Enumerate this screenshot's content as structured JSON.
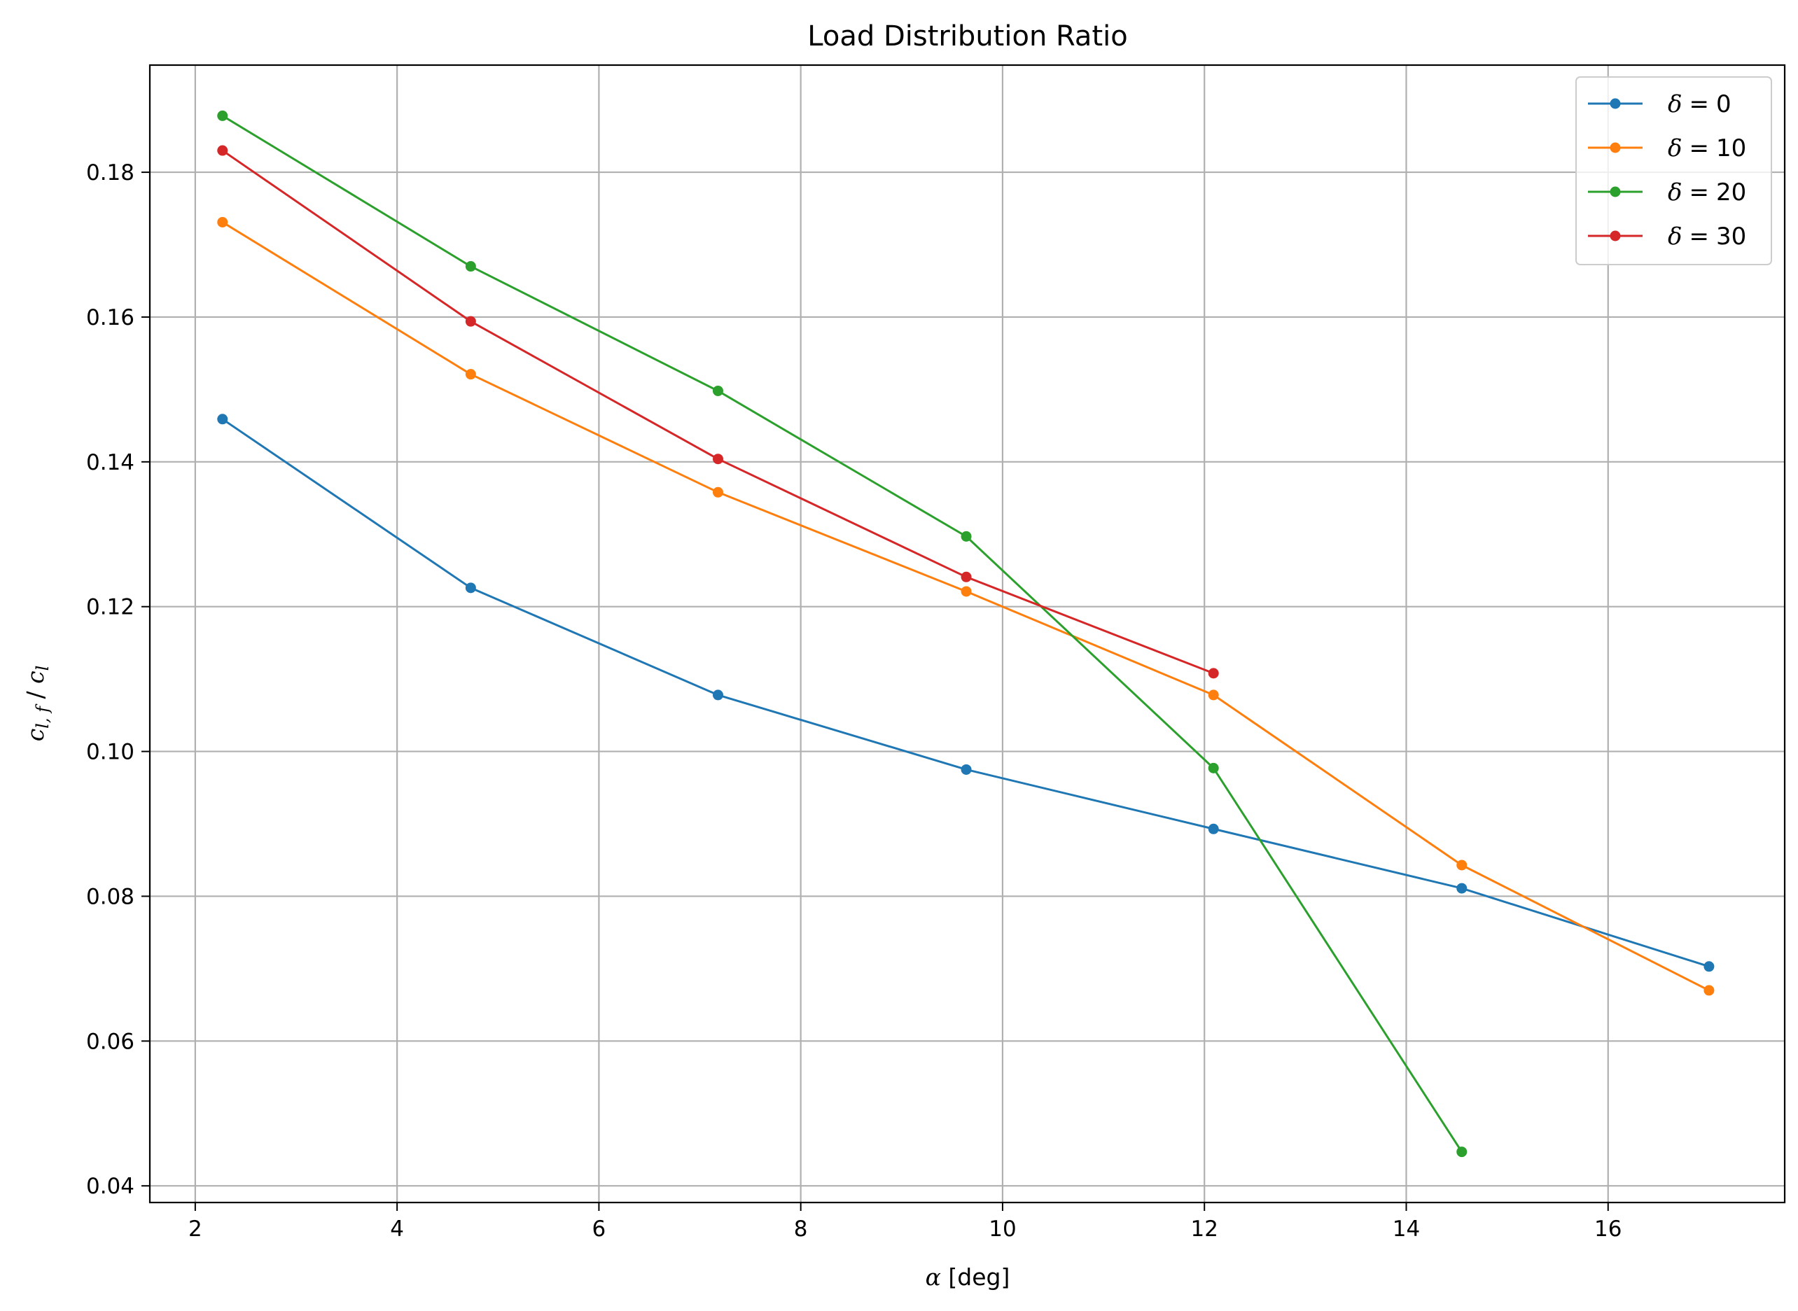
{
  "chart_data": {
    "type": "line",
    "title": "Load Distribution Ratio",
    "xlabel": "α [deg]",
    "ylabel": "c_{l,f} / c_l",
    "xlim": [
      1.55,
      17.75
    ],
    "ylim": [
      0.0377,
      0.1948
    ],
    "xticks": [
      2,
      4,
      6,
      8,
      10,
      12,
      14,
      16
    ],
    "yticks": [
      0.04,
      0.06,
      0.08,
      0.1,
      0.12,
      0.14,
      0.16,
      0.18
    ],
    "xtick_labels": [
      "2",
      "4",
      "6",
      "8",
      "10",
      "12",
      "14",
      "16"
    ],
    "ytick_labels": [
      "0.04",
      "0.06",
      "0.08",
      "0.10",
      "0.12",
      "0.14",
      "0.16",
      "0.18"
    ],
    "grid": true,
    "legend_position": "top-right",
    "series": [
      {
        "name": "δ = 0",
        "color": "#1f77b4",
        "x": [
          2.27,
          4.73,
          7.18,
          9.64,
          12.09,
          14.55,
          17.0
        ],
        "y": [
          0.1459,
          0.1226,
          0.1078,
          0.0975,
          0.0893,
          0.0811,
          0.0703
        ]
      },
      {
        "name": "δ = 10",
        "color": "#ff7f0e",
        "x": [
          2.27,
          4.73,
          7.18,
          9.64,
          12.09,
          14.55,
          17.0
        ],
        "y": [
          0.1731,
          0.1521,
          0.1358,
          0.1221,
          0.1078,
          0.0843,
          0.067
        ]
      },
      {
        "name": "δ = 20",
        "color": "#2ca02c",
        "x": [
          2.27,
          4.73,
          7.18,
          9.64,
          12.09,
          14.55
        ],
        "y": [
          0.1878,
          0.167,
          0.1498,
          0.1297,
          0.0977,
          0.0447
        ]
      },
      {
        "name": "δ = 30",
        "color": "#d62728",
        "x": [
          2.27,
          4.73,
          7.18,
          9.64,
          12.09
        ],
        "y": [
          0.183,
          0.1594,
          0.1404,
          0.1241,
          0.1108
        ]
      }
    ],
    "legend": {
      "symbol": "δ",
      "equals": "=",
      "values": [
        "0",
        "10",
        "20",
        "30"
      ]
    }
  }
}
